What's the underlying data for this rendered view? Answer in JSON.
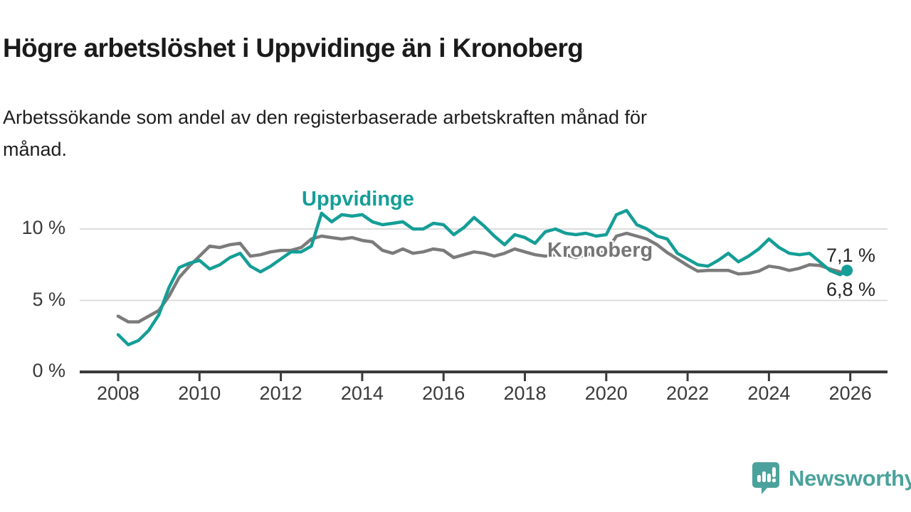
{
  "header": {
    "title": "Högre arbetslöshet i Uppvidinge än i Kronoberg",
    "subtitle_line1": "Arbetssökande som andel av den registerbaserade arbetskraften månad för",
    "subtitle_line2": "månad."
  },
  "colors": {
    "uppvidinge_teal": "#149e97",
    "kronoberg_gray": "#7b7b7b",
    "axis": "#3a3a3a",
    "gridline": "#dcdcdc",
    "logo_teal": "#4ba29c"
  },
  "chart_data": {
    "type": "line",
    "title": "Högre arbetslöshet i Uppvidinge än i Kronoberg",
    "subtitle": "Arbetssökande som andel av den registerbaserade arbetskraften månad för månad.",
    "xlabel": "",
    "ylabel": "",
    "grid": "horizontal gridlines at 5 % and 10 %",
    "legend_position": "inline labels on lines",
    "resolution_note": "values estimated from graph at quarterly resolution, decimal years",
    "xlim": [
      2007.1,
      2026.9
    ],
    "ylim": [
      0,
      12.5
    ],
    "x_axis": {
      "ticks": [
        2008,
        2010,
        2012,
        2014,
        2016,
        2018,
        2020,
        2022,
        2024,
        2026
      ],
      "tick_labels": [
        "2008",
        "2010",
        "2012",
        "2014",
        "2016",
        "2018",
        "2020",
        "2022",
        "2024",
        "2026"
      ]
    },
    "y_axis": {
      "ticks": [
        {
          "value": 0,
          "label": "0 %"
        },
        {
          "value": 5,
          "label": "5 %"
        },
        {
          "value": 10,
          "label": "10 %"
        }
      ]
    },
    "x": [
      2008.0,
      2008.25,
      2008.5,
      2008.75,
      2009.0,
      2009.25,
      2009.5,
      2009.75,
      2010.0,
      2010.25,
      2010.5,
      2010.75,
      2011.0,
      2011.25,
      2011.5,
      2011.75,
      2012.0,
      2012.25,
      2012.5,
      2012.75,
      2013.0,
      2013.25,
      2013.5,
      2013.75,
      2014.0,
      2014.25,
      2014.5,
      2014.75,
      2015.0,
      2015.25,
      2015.5,
      2015.75,
      2016.0,
      2016.25,
      2016.5,
      2016.75,
      2017.0,
      2017.25,
      2017.5,
      2017.75,
      2018.0,
      2018.25,
      2018.5,
      2018.75,
      2019.0,
      2019.25,
      2019.5,
      2019.75,
      2020.0,
      2020.25,
      2020.5,
      2020.75,
      2021.0,
      2021.25,
      2021.5,
      2021.75,
      2022.0,
      2022.25,
      2022.5,
      2022.75,
      2023.0,
      2023.25,
      2023.5,
      2023.75,
      2024.0,
      2024.25,
      2024.5,
      2024.75,
      2025.0,
      2025.25,
      2025.5,
      2025.75,
      2025.92
    ],
    "series": [
      {
        "name": "Uppvidinge",
        "color": "#149e97",
        "end_value_label": "7,1 %",
        "values": [
          2.6,
          1.9,
          2.2,
          2.9,
          4.0,
          5.9,
          7.3,
          7.6,
          7.8,
          7.2,
          7.5,
          8.0,
          8.3,
          7.4,
          7.0,
          7.4,
          7.9,
          8.4,
          8.4,
          8.8,
          11.1,
          10.5,
          11.0,
          10.9,
          11.0,
          10.5,
          10.3,
          10.4,
          10.5,
          10.0,
          10.0,
          10.4,
          10.3,
          9.6,
          10.1,
          10.8,
          10.2,
          9.5,
          8.9,
          9.6,
          9.4,
          9.0,
          9.8,
          10.0,
          9.7,
          9.6,
          9.7,
          9.5,
          9.6,
          11.0,
          11.3,
          10.3,
          10.0,
          9.5,
          9.3,
          8.3,
          7.9,
          7.5,
          7.4,
          7.8,
          8.3,
          7.7,
          8.1,
          8.6,
          9.3,
          8.7,
          8.3,
          8.2,
          8.3,
          7.7,
          7.1,
          6.8,
          7.1
        ]
      },
      {
        "name": "Kronoberg",
        "color": "#7b7b7b",
        "end_value_label": "6,8 %",
        "values": [
          3.9,
          3.5,
          3.5,
          3.9,
          4.3,
          5.3,
          6.6,
          7.4,
          8.1,
          8.8,
          8.7,
          8.9,
          9.0,
          8.1,
          8.2,
          8.4,
          8.5,
          8.5,
          8.7,
          9.3,
          9.5,
          9.4,
          9.3,
          9.4,
          9.2,
          9.1,
          8.5,
          8.3,
          8.6,
          8.3,
          8.4,
          8.6,
          8.5,
          8.0,
          8.2,
          8.4,
          8.3,
          8.1,
          8.3,
          8.6,
          8.4,
          8.2,
          8.1,
          8.2,
          8.2,
          8.0,
          8.2,
          8.3,
          8.4,
          9.5,
          9.7,
          9.5,
          9.3,
          8.9,
          8.35,
          7.9,
          7.45,
          7.05,
          7.1,
          7.1,
          7.1,
          6.85,
          6.9,
          7.05,
          7.4,
          7.3,
          7.1,
          7.25,
          7.5,
          7.45,
          7.2,
          7.0,
          6.8
        ]
      }
    ],
    "end_labels": {
      "uppvidinge": "7,1 %",
      "kronoberg": "6,8 %"
    }
  },
  "footer": {
    "logo_text": "Newsworthy"
  }
}
